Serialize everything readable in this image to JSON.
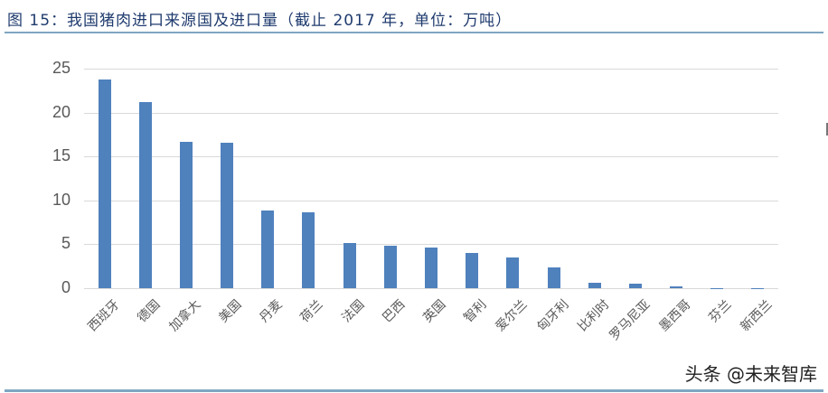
{
  "header": {
    "title": "图 15：我国猪肉进口来源国及进口量（截止 2017 年，单位：万吨）"
  },
  "footer": {
    "watermark": "头条 @未来智库"
  },
  "colors": {
    "bar": "#4f81bd",
    "title": "#1f3b6e",
    "rule": "#7fa6c2",
    "grid": "#d9d9d9",
    "axis_text": "#595959"
  },
  "chart_data": {
    "type": "bar",
    "title": "我国猪肉进口来源国及进口量（截止 2017 年，单位：万吨）",
    "xlabel": "",
    "ylabel": "",
    "ylim": [
      0,
      25
    ],
    "yticks": [
      0,
      5,
      10,
      15,
      20,
      25
    ],
    "grid": true,
    "legend": null,
    "categories": [
      "西班牙",
      "德国",
      "加拿大",
      "美国",
      "丹麦",
      "荷兰",
      "法国",
      "巴西",
      "英国",
      "智利",
      "爱尔兰",
      "匈牙利",
      "比利时",
      "罗马尼亚",
      "墨西哥",
      "芬兰",
      "新西兰"
    ],
    "values": [
      23.8,
      21.2,
      16.7,
      16.6,
      8.8,
      8.6,
      5.1,
      4.8,
      4.6,
      4.0,
      3.5,
      2.4,
      0.6,
      0.5,
      0.2,
      0.05,
      0.01
    ]
  }
}
